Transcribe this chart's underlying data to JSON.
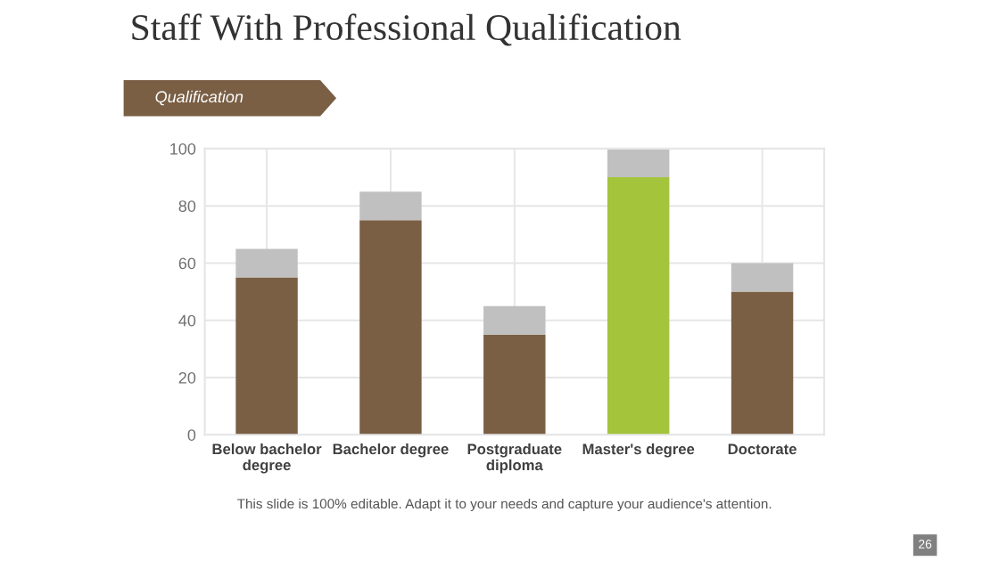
{
  "chart_data": {
    "type": "bar",
    "title": "Staff With Professional Qualification",
    "categories": [
      "Below bachelor\ndegree",
      "Bachelor degree",
      "Postgraduate\ndiploma",
      "Master's degree",
      "Doctorate"
    ],
    "series": [
      {
        "colors": [
          "#7a5f45",
          "#7a5f45",
          "#7a5f45",
          "#a4c43c",
          "#7a5f45"
        ],
        "values": [
          55,
          75,
          35,
          90,
          50
        ]
      },
      {
        "color": "#c0c0c0",
        "values": [
          10,
          10,
          10,
          10,
          10
        ]
      }
    ],
    "stacked": true,
    "ylim": [
      0,
      100
    ],
    "yticks": [
      0,
      20,
      40,
      60,
      80,
      100
    ],
    "grid": true,
    "legend": false,
    "annotations": [
      "Qualification",
      "This slide is 100% editable. Adapt it to your needs and capture your audience's attention.",
      "26"
    ]
  }
}
